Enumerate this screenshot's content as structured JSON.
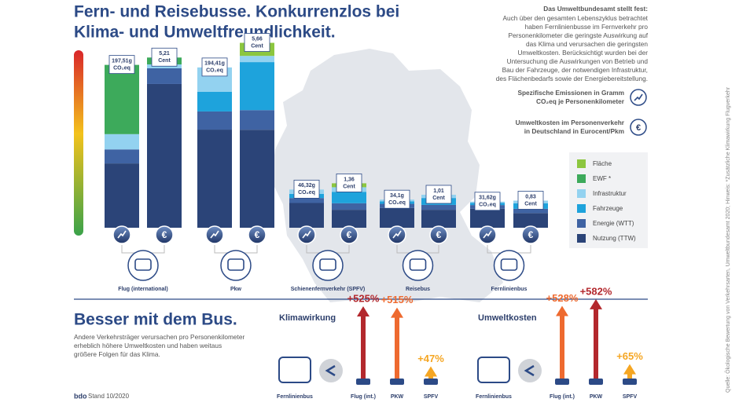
{
  "header": {
    "title_lines": [
      "Fern- und Reisebusse. Konkurrenzlos bei",
      "Klima- und Umweltfreundlichkeit."
    ]
  },
  "info": {
    "heading": "Das Umweltbundesamt stellt fest:",
    "lines": [
      "Auch über den gesamten Lebenszyklus betrachtet",
      "haben Fernlinienbusse im Fernverkehr pro",
      "Personenkilometer die geringste Auswirkung auf",
      "das Klima und verursachen die geringsten",
      "Umweltkosten. Berücksichtigt wurden bei der",
      "Untersuchung die Auswirkungen von Betrieb und",
      "Bau der Fahrzeuge, der notwendigen Infrastruktur,",
      "des Flächenbedarfs sowie der Energiebereitstellung."
    ],
    "emission_note": [
      "Spezifische Emissionen in Gramm",
      "CO₂eq je Personenkilometer"
    ],
    "cost_note": [
      "Umweltkosten im Personenverkehr",
      "in Deutschland in Eurocent/Pkm"
    ],
    "euro": "€"
  },
  "chart_data": {
    "type": "stacked_bar",
    "legend": [
      {
        "name": "Fläche",
        "color": "#8cc63f"
      },
      {
        "name": "EWF *",
        "color": "#3daa5b"
      },
      {
        "name": "Infrastruktur",
        "color": "#93d2f0"
      },
      {
        "name": "Fahrzeuge",
        "color": "#1ea3dc"
      },
      {
        "name": "Energie (WTT)",
        "color": "#3f63a3"
      },
      {
        "name": "Nutzung (TTW)",
        "color": "#2b4478"
      }
    ],
    "groups": [
      {
        "name": "Flug (international)",
        "emission": {
          "value": 197.51,
          "label": "197,51g",
          "unit": "CO₂eq",
          "segments": [
            null,
            84,
            18.51,
            null,
            17,
            78
          ]
        },
        "cost": {
          "value": 5.21,
          "label": "5,21",
          "unit": "Cent",
          "segments": [
            null,
            0.21,
            0.12,
            null,
            0.48,
            4.4
          ]
        }
      },
      {
        "name": "Pkw",
        "emission": {
          "value": 194.41,
          "label": "194,41g",
          "unit": "CO₂eq",
          "segments": [
            null,
            null,
            29.41,
            24,
            22,
            119
          ]
        },
        "cost": {
          "value": 5.66,
          "label": "5,66",
          "unit": "Cent",
          "segments": [
            0.4,
            null,
            0.19,
            1.47,
            0.6,
            3
          ]
        }
      },
      {
        "name": "Schienenfernverkehr (SPFV)",
        "emission": {
          "value": 46.32,
          "label": "46,32g",
          "unit": "CO₂eq",
          "segments": [
            null,
            null,
            5.32,
            5,
            6,
            30
          ]
        },
        "cost": {
          "value": 1.36,
          "label": "1,36",
          "unit": "Cent",
          "segments": [
            0.12,
            null,
            0.14,
            0.35,
            0.2,
            0.55
          ]
        }
      },
      {
        "name": "Reisebus",
        "emission": {
          "value": 34.1,
          "label": "34,1g",
          "unit": "CO₂eq",
          "segments": [
            null,
            null,
            2.1,
            3,
            5,
            24
          ]
        },
        "cost": {
          "value": 1.01,
          "label": "1,01",
          "unit": "Cent",
          "segments": [
            null,
            null,
            0.1,
            0.21,
            0.15,
            0.55
          ]
        }
      },
      {
        "name": "Fernlinienbus",
        "emission": {
          "value": 31.62,
          "label": "31,62g",
          "unit": "CO₂eq",
          "segments": [
            null,
            null,
            1.62,
            2.5,
            4.5,
            23
          ]
        },
        "cost": {
          "value": 0.83,
          "label": "0,83",
          "unit": "Cent",
          "segments": [
            null,
            null,
            0.08,
            0.17,
            0.13,
            0.45
          ]
        }
      }
    ]
  },
  "bottom": {
    "title": "Besser mit dem Bus.",
    "lines": [
      "Andere Verkehrsträger verursachen pro Personenkilometer",
      "erheblich höhere Umweltkosten und haben weitaus",
      "größere Folgen für das Klima."
    ],
    "bus_label": "Fernlinienbus",
    "panels": [
      {
        "title": "Klimawirkung",
        "items": [
          {
            "name": "Flug (int.)",
            "value": 525,
            "label": "+525%",
            "color": "#b3282d"
          },
          {
            "name": "PKW",
            "value": 515,
            "label": "+515%",
            "color": "#ee6a2f"
          },
          {
            "name": "SPFV",
            "value": 47,
            "label": "+47%",
            "color": "#f5a623"
          }
        ]
      },
      {
        "title": "Umweltkosten",
        "items": [
          {
            "name": "Flug (int.)",
            "value": 528,
            "label": "+528%",
            "color": "#ee6a2f"
          },
          {
            "name": "PKW",
            "value": 582,
            "label": "+582%",
            "color": "#b3282d"
          },
          {
            "name": "SPFV",
            "value": 65,
            "label": "+65%",
            "color": "#f5a623"
          }
        ]
      }
    ]
  },
  "footer": {
    "logo": "bdo",
    "stand": "Stand 10/2020",
    "source": "Quelle: Ökologische Bewertung von Verkehrsarten, Umweltbundesamt 2020; Hinweis: *Zusätzliche Klimawirkung Flugverkehr"
  }
}
